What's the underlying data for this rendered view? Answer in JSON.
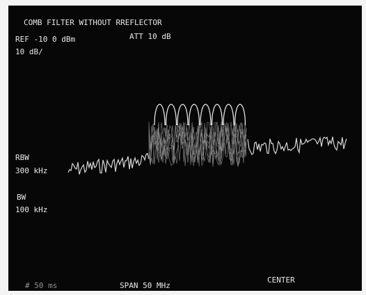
{
  "header": {
    "title": "COMB FILTER WITHOUT RREFLECTOR",
    "ref": "REF -10 0 dBm",
    "att": "ATT 10 dB",
    "scale": "10 dB/"
  },
  "side": {
    "rbw_label": "RBW",
    "rbw_value": "300 kHz",
    "bw_label": "BW",
    "bw_value": "100 kHz"
  },
  "footer": {
    "sweep": "# 50 ms",
    "span": "SPAN 50 MHz",
    "center": "CENTER"
  }
}
